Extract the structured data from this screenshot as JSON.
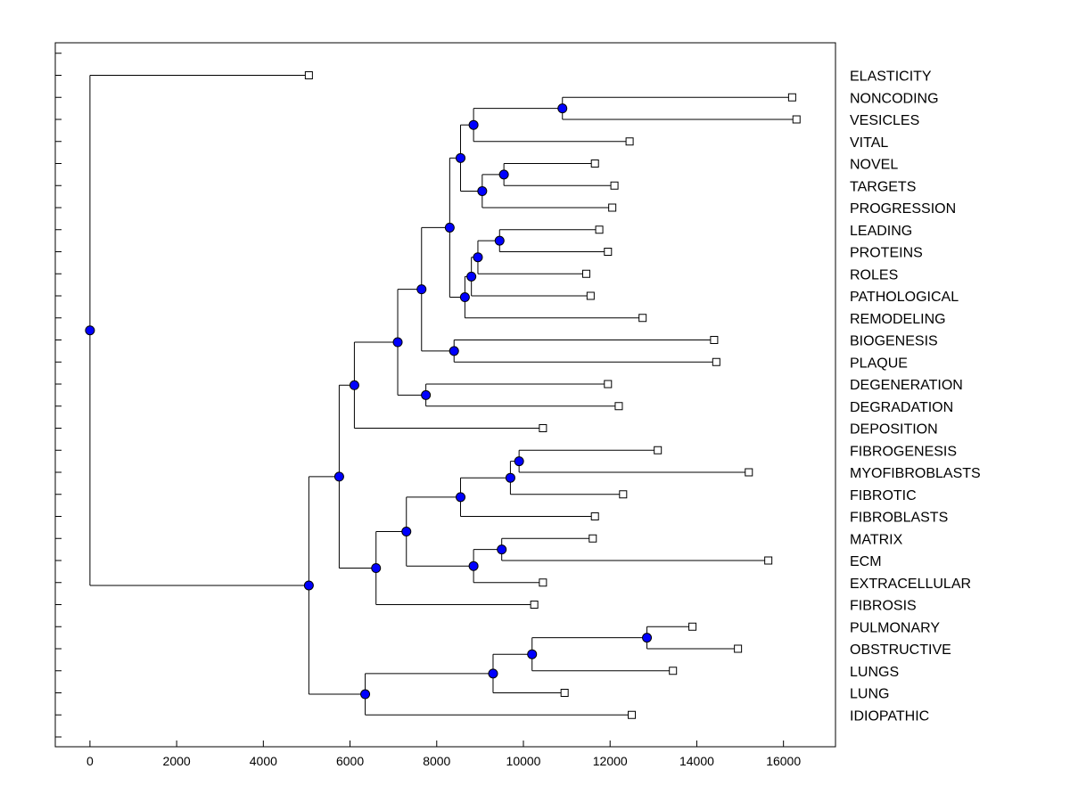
{
  "chart_data": {
    "type": "dendrogram",
    "title": "",
    "xlabel": "",
    "ylabel": "",
    "xlim": [
      -800,
      17200
    ],
    "xticks": [
      0,
      2000,
      4000,
      6000,
      8000,
      10000,
      12000,
      14000,
      16000
    ],
    "xtick_labels": [
      "0",
      "2000",
      "4000",
      "6000",
      "8000",
      "10000",
      "12000",
      "14000",
      "16000"
    ],
    "grid": false,
    "colors": {
      "node_fill": "#0000ff",
      "line": "#000000",
      "leaf_fill": "#ffffff",
      "background": "#ffffff"
    },
    "leaves": [
      {
        "label": "ELASTICITY",
        "x": 5050
      },
      {
        "label": "NONCODING",
        "x": 16200
      },
      {
        "label": "VESICLES",
        "x": 16300
      },
      {
        "label": "VITAL",
        "x": 12450
      },
      {
        "label": "NOVEL",
        "x": 11650
      },
      {
        "label": "TARGETS",
        "x": 12100
      },
      {
        "label": "PROGRESSION",
        "x": 12050
      },
      {
        "label": "LEADING",
        "x": 11750
      },
      {
        "label": "PROTEINS",
        "x": 11950
      },
      {
        "label": "ROLES",
        "x": 11450
      },
      {
        "label": "PATHOLOGICAL",
        "x": 11550
      },
      {
        "label": "REMODELING",
        "x": 12750
      },
      {
        "label": "BIOGENESIS",
        "x": 14400
      },
      {
        "label": "PLAQUE",
        "x": 14450
      },
      {
        "label": "DEGENERATION",
        "x": 11950
      },
      {
        "label": "DEGRADATION",
        "x": 12200
      },
      {
        "label": "DEPOSITION",
        "x": 10450
      },
      {
        "label": "FIBROGENESIS",
        "x": 13100
      },
      {
        "label": "MYOFIBROBLASTS",
        "x": 15200
      },
      {
        "label": "FIBROTIC",
        "x": 12300
      },
      {
        "label": "FIBROBLASTS",
        "x": 11650
      },
      {
        "label": "MATRIX",
        "x": 11600
      },
      {
        "label": "ECM",
        "x": 15650
      },
      {
        "label": "EXTRACELLULAR",
        "x": 10450
      },
      {
        "label": "FIBROSIS",
        "x": 10250
      },
      {
        "label": "PULMONARY",
        "x": 13900
      },
      {
        "label": "OBSTRUCTIVE",
        "x": 14950
      },
      {
        "label": "LUNGS",
        "x": 13450
      },
      {
        "label": "LUNG",
        "x": 10950
      },
      {
        "label": "IDIOPATHIC",
        "x": 12500
      }
    ],
    "merges": [
      {
        "id": "c1",
        "x": 10900,
        "children": [
          "NONCODING",
          "VESICLES"
        ]
      },
      {
        "id": "c2",
        "x": 8850,
        "children": [
          "c1",
          "VITAL"
        ]
      },
      {
        "id": "c3",
        "x": 9550,
        "children": [
          "NOVEL",
          "TARGETS"
        ]
      },
      {
        "id": "c4",
        "x": 9050,
        "children": [
          "c3",
          "PROGRESSION"
        ]
      },
      {
        "id": "c5",
        "x": 8550,
        "children": [
          "c2",
          "c4"
        ]
      },
      {
        "id": "c6",
        "x": 9450,
        "children": [
          "LEADING",
          "PROTEINS"
        ]
      },
      {
        "id": "c7",
        "x": 8950,
        "children": [
          "c6",
          "ROLES"
        ]
      },
      {
        "id": "c8",
        "x": 8800,
        "children": [
          "c7",
          "PATHOLOGICAL"
        ]
      },
      {
        "id": "c9",
        "x": 8650,
        "children": [
          "c8",
          "REMODELING"
        ]
      },
      {
        "id": "c10",
        "x": 8300,
        "children": [
          "c5",
          "c9"
        ]
      },
      {
        "id": "c11",
        "x": 8400,
        "children": [
          "BIOGENESIS",
          "PLAQUE"
        ]
      },
      {
        "id": "c12",
        "x": 7650,
        "children": [
          "c10",
          "c11"
        ]
      },
      {
        "id": "c13",
        "x": 7750,
        "children": [
          "DEGENERATION",
          "DEGRADATION"
        ]
      },
      {
        "id": "c14",
        "x": 7100,
        "children": [
          "c12",
          "c13"
        ]
      },
      {
        "id": "c15",
        "x": 6100,
        "children": [
          "c14",
          "DEPOSITION"
        ]
      },
      {
        "id": "c16",
        "x": 9900,
        "children": [
          "FIBROGENESIS",
          "MYOFIBROBLASTS"
        ]
      },
      {
        "id": "c17",
        "x": 9700,
        "children": [
          "c16",
          "FIBROTIC"
        ]
      },
      {
        "id": "c18",
        "x": 8550,
        "children": [
          "c17",
          "FIBROBLASTS"
        ]
      },
      {
        "id": "c19",
        "x": 9500,
        "children": [
          "MATRIX",
          "ECM"
        ]
      },
      {
        "id": "c20",
        "x": 8850,
        "children": [
          "c19",
          "EXTRACELLULAR"
        ]
      },
      {
        "id": "c21",
        "x": 7300,
        "children": [
          "c18",
          "c20"
        ]
      },
      {
        "id": "c22",
        "x": 6600,
        "children": [
          "c21",
          "FIBROSIS"
        ]
      },
      {
        "id": "c23",
        "x": 5750,
        "children": [
          "c15",
          "c22"
        ]
      },
      {
        "id": "c24",
        "x": 12850,
        "children": [
          "PULMONARY",
          "OBSTRUCTIVE"
        ]
      },
      {
        "id": "c25",
        "x": 10200,
        "children": [
          "c24",
          "LUNGS"
        ]
      },
      {
        "id": "c26",
        "x": 9300,
        "children": [
          "c25",
          "LUNG"
        ]
      },
      {
        "id": "c27",
        "x": 6350,
        "children": [
          "c26",
          "IDIOPATHIC"
        ]
      },
      {
        "id": "c28",
        "x": 5050,
        "children": [
          "c23",
          "c27"
        ]
      },
      {
        "id": "c29",
        "x": 0,
        "children": [
          "ELASTICITY",
          "c28"
        ]
      }
    ]
  }
}
